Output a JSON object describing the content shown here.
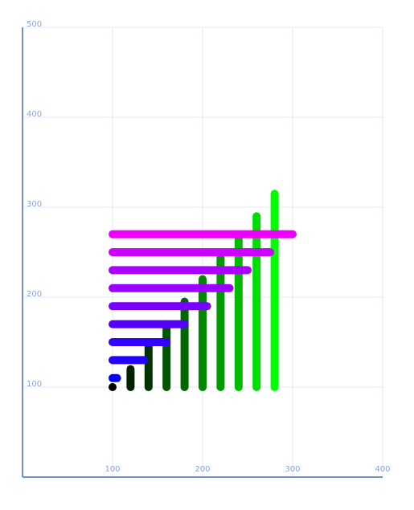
{
  "chart_data": {
    "type": "segments",
    "xlim": [
      0,
      400
    ],
    "ylim": [
      0,
      500
    ],
    "xticks": [
      100,
      200,
      300,
      400
    ],
    "yticks": [
      100,
      200,
      300,
      400,
      500
    ],
    "grid": true,
    "segments": [
      {
        "x": [
          100,
          100
        ],
        "y": [
          100,
          100
        ],
        "color": "#000000"
      },
      {
        "x": [
          120,
          120
        ],
        "y": [
          100,
          120
        ],
        "color": "#002200"
      },
      {
        "x": [
          140,
          140
        ],
        "y": [
          100,
          145
        ],
        "color": "#003300"
      },
      {
        "x": [
          160,
          160
        ],
        "y": [
          100,
          170
        ],
        "color": "#005500"
      },
      {
        "x": [
          180,
          180
        ],
        "y": [
          100,
          195
        ],
        "color": "#006600"
      },
      {
        "x": [
          200,
          200
        ],
        "y": [
          100,
          220
        ],
        "color": "#008800"
      },
      {
        "x": [
          220,
          220
        ],
        "y": [
          100,
          245
        ],
        "color": "#009900"
      },
      {
        "x": [
          240,
          240
        ],
        "y": [
          100,
          265
        ],
        "color": "#00bb00"
      },
      {
        "x": [
          260,
          260
        ],
        "y": [
          100,
          290
        ],
        "color": "#00dd00"
      },
      {
        "x": [
          280,
          280
        ],
        "y": [
          100,
          315
        ],
        "color": "#00ff00"
      },
      {
        "x": [
          100,
          105
        ],
        "y": [
          110,
          110
        ],
        "color": "#0000ff"
      },
      {
        "x": [
          100,
          135
        ],
        "y": [
          130,
          130
        ],
        "color": "#2200ff"
      },
      {
        "x": [
          100,
          160
        ],
        "y": [
          150,
          150
        ],
        "color": "#3300ff"
      },
      {
        "x": [
          100,
          180
        ],
        "y": [
          170,
          170
        ],
        "color": "#5500ff"
      },
      {
        "x": [
          100,
          205
        ],
        "y": [
          190,
          190
        ],
        "color": "#7700ff"
      },
      {
        "x": [
          100,
          230
        ],
        "y": [
          210,
          210
        ],
        "color": "#9900ff"
      },
      {
        "x": [
          100,
          250
        ],
        "y": [
          230,
          230
        ],
        "color": "#aa00ff"
      },
      {
        "x": [
          100,
          275
        ],
        "y": [
          250,
          250
        ],
        "color": "#cc00ff"
      },
      {
        "x": [
          100,
          300
        ],
        "y": [
          270,
          270
        ],
        "color": "#ee00ff"
      }
    ]
  }
}
